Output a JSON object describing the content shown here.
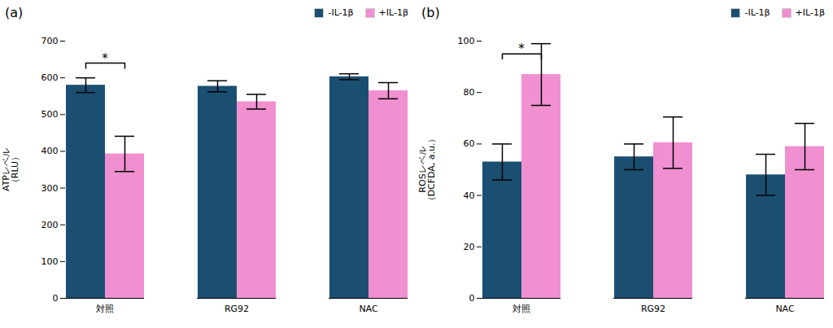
{
  "chart_data": [
    {
      "type": "bar",
      "title": "(a)",
      "categories": [
        "対照",
        "RG92",
        "NAC"
      ],
      "series": [
        {
          "name": "-IL-1β",
          "color": "#1b4f72",
          "values": [
            580,
            577,
            603
          ],
          "errors": [
            20,
            15,
            8
          ]
        },
        {
          "name": "+IL-1β",
          "color": "#f090d0",
          "values": [
            393,
            535,
            565
          ],
          "errors": [
            48,
            20,
            22
          ]
        }
      ],
      "ylabel": "ATPレベル\n（RLU）",
      "ylim": [
        0,
        700
      ],
      "yticks": [
        0,
        100,
        200,
        300,
        400,
        500,
        600,
        700
      ],
      "annotations": [
        {
          "text": "*",
          "category": "対照",
          "y": 640
        }
      ],
      "legend": "upper right",
      "grid": false
    },
    {
      "type": "bar",
      "title": "(b)",
      "categories": [
        "対照",
        "RG92",
        "NAC"
      ],
      "series": [
        {
          "name": "-IL-1β",
          "color": "#1b4f72",
          "values": [
            53,
            55,
            48
          ],
          "errors": [
            7,
            5,
            8
          ]
        },
        {
          "name": "+IL-1β",
          "color": "#f090d0",
          "values": [
            87,
            60.5,
            59
          ],
          "errors": [
            12,
            10,
            9
          ]
        }
      ],
      "ylabel": "ROSレベル\n（DCFDA, a.u.）",
      "ylim": [
        0,
        100
      ],
      "yticks": [
        0,
        20,
        40,
        60,
        80,
        100
      ],
      "annotations": [
        {
          "text": "*",
          "category": "対照",
          "y": 95
        }
      ],
      "legend": "upper right",
      "grid": false
    }
  ]
}
